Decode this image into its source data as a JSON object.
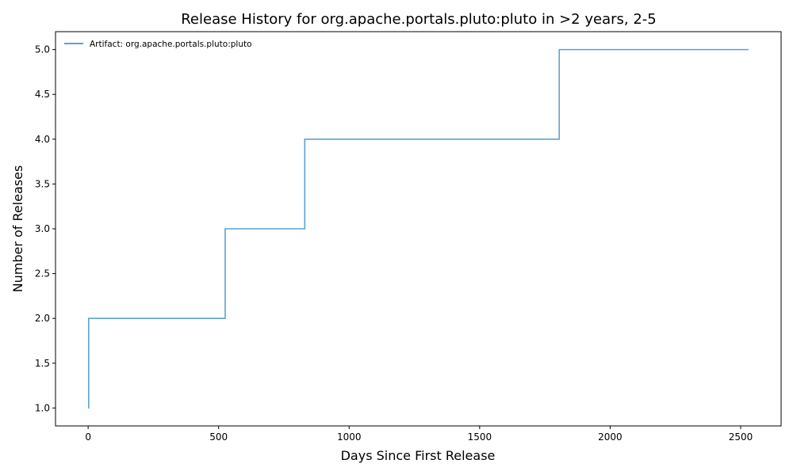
{
  "chart_data": {
    "type": "line",
    "step": "post",
    "title": "Release History for org.apache.portals.pluto:pluto in >2 years, 2-5",
    "xlabel": "Days Since First Release",
    "ylabel": "Number of Releases",
    "xlim": [
      -125,
      2655
    ],
    "ylim": [
      0.8,
      5.2
    ],
    "xticks": [
      0,
      500,
      1000,
      1500,
      2000,
      2500
    ],
    "xtick_labels": [
      "0",
      "500",
      "1000",
      "1500",
      "2000",
      "2500"
    ],
    "yticks": [
      1.0,
      1.5,
      2.0,
      2.5,
      3.0,
      3.5,
      4.0,
      4.5,
      5.0
    ],
    "ytick_labels": [
      "1.0",
      "1.5",
      "2.0",
      "2.5",
      "3.0",
      "3.5",
      "4.0",
      "4.5",
      "5.0"
    ],
    "grid": false,
    "legend_position": "top-left",
    "series": [
      {
        "name": "Artifact: org.apache.portals.pluto:pluto",
        "color": "#5ba3cf",
        "x": [
          0,
          2,
          525,
          830,
          1805,
          2530
        ],
        "y": [
          1,
          2,
          3,
          4,
          5,
          5
        ]
      }
    ]
  }
}
